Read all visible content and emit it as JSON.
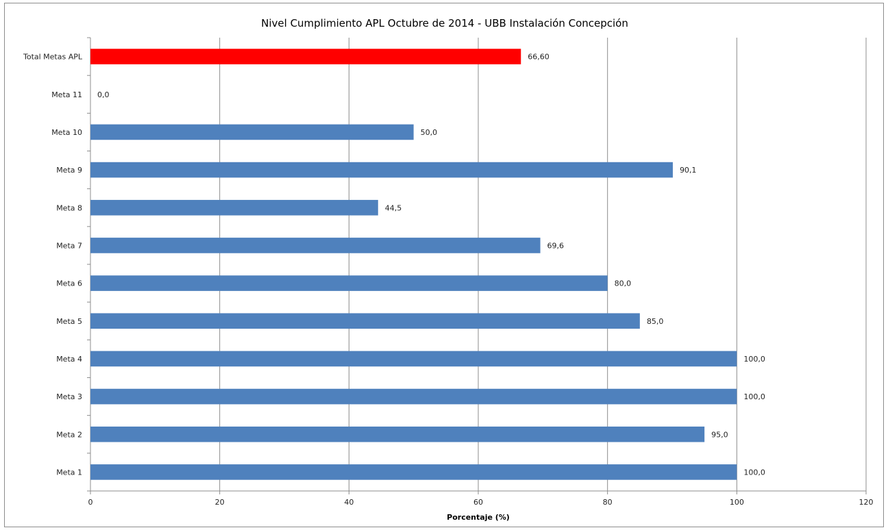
{
  "chart_data": {
    "type": "bar",
    "orientation": "horizontal",
    "title": "Nivel Cumplimiento APL Octubre de 2014 - UBB Instalación Concepción",
    "xlabel": "Porcentaje (%)",
    "ylabel": "",
    "xlim": [
      0,
      120
    ],
    "x_ticks": [
      "0",
      "20",
      "40",
      "60",
      "80",
      "100",
      "120"
    ],
    "grid": "vertical",
    "legend": "none",
    "categories": [
      "Total Metas APL",
      "Meta 11",
      "Meta 10",
      "Meta 9",
      "Meta 8",
      "Meta 7",
      "Meta 6",
      "Meta 5",
      "Meta 4",
      "Meta 3",
      "Meta 2",
      "Meta 1"
    ],
    "values": [
      66.6,
      0.0,
      50.0,
      90.1,
      44.5,
      69.6,
      80.0,
      85.0,
      100.0,
      100.0,
      95.0,
      100.0
    ],
    "value_labels": [
      "66,60",
      "0,0",
      "50,0",
      "90,1",
      "44,5",
      "69,6",
      "80,0",
      "85,0",
      "100,0",
      "100,0",
      "95,0",
      "100,0"
    ],
    "colors": {
      "default_bar": "#4f81bd",
      "highlight_bar": "#ff0000",
      "gridline": "#8c8c8c"
    },
    "highlight_index": 0
  }
}
